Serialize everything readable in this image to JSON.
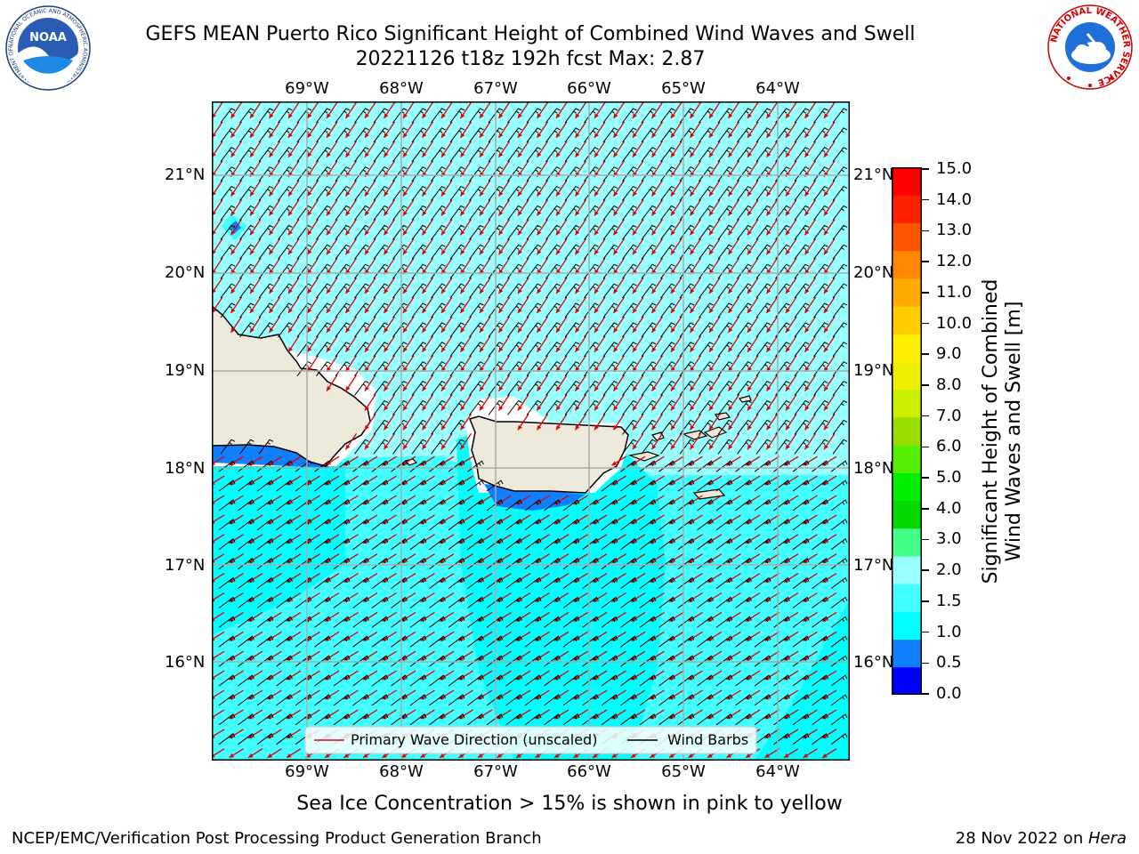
{
  "title": {
    "line1": "GEFS MEAN Puerto Rico Significant Height of Combined Wind Waves and Swell",
    "line2": "20221126 t18z 192h fcst   Max: 2.87"
  },
  "map": {
    "lon_labels": [
      "69°W",
      "68°W",
      "67°W",
      "66°W",
      "65°W",
      "64°W"
    ],
    "lat_labels": [
      "21°N",
      "20°N",
      "19°N",
      "18°N",
      "17°N",
      "16°N"
    ],
    "legend": {
      "primary_wave": "Primary Wave Direction (unscaled)",
      "wind_barbs": "Wind Barbs",
      "primary_wave_color": "#e00000",
      "wind_barbs_color": "#000000"
    },
    "colors": {
      "ocean": "#00ffff",
      "ocean_light": "#44ffff",
      "ocean_lighter": "#99ffff",
      "deep": "#0f7fff",
      "land": "#eeeadb",
      "grid": "#aaaaaa"
    }
  },
  "colorbar": {
    "title_line1": "Significant Height of Combined",
    "title_line2": "Wind Waves and Swell [m]",
    "ticks": [
      "15.0",
      "14.0",
      "13.0",
      "12.0",
      "11.0",
      "10.0",
      "9.0",
      "8.0",
      "7.0",
      "6.0",
      "5.0",
      "4.0",
      "3.0",
      "2.0",
      "1.5",
      "1.0",
      "0.5",
      "0.0"
    ],
    "colors": [
      "#0000ff",
      "#0f7fff",
      "#00ffff",
      "#44ffff",
      "#99ffff",
      "#44ff88",
      "#00d800",
      "#00ee00",
      "#55ee00",
      "#99dd00",
      "#ccee00",
      "#eeee00",
      "#ffee00",
      "#ffcc00",
      "#ffaa00",
      "#ff8800",
      "#ff5500",
      "#ff2200",
      "#ff0000"
    ]
  },
  "logos": {
    "noaa_text": "NOAA",
    "noaa_ring": "NATIONAL OCEANIC AND ATMOSPHERIC ADMINISTRATION · U.S. DEPARTMENT OF COMMERCE ·",
    "nws_ring": "NATIONAL WEATHER SERVICE"
  },
  "sea_ice_note": "Sea Ice Concentration > 15% is shown in pink to yellow",
  "footer": {
    "left": "NCEP/EMC/Verification Post Processing Product Generation Branch",
    "right_date": "28 Nov 2022 on ",
    "right_host": "Hera"
  }
}
